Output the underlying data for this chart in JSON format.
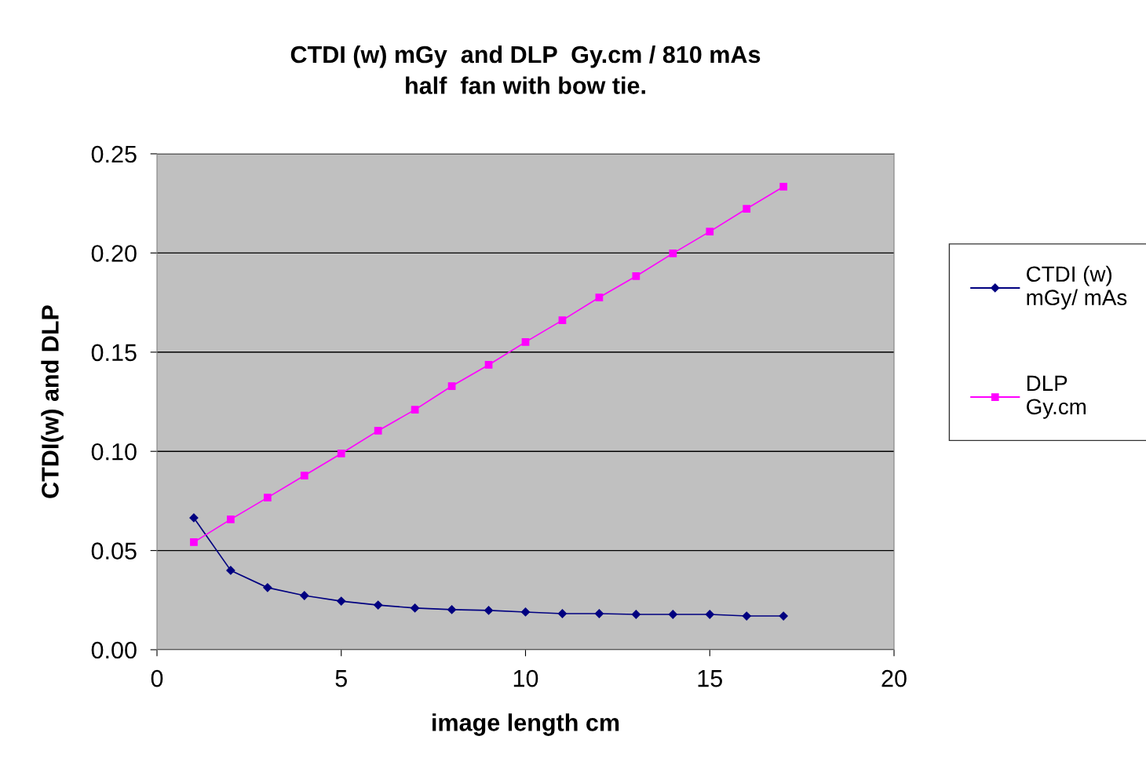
{
  "chart_data": {
    "type": "line",
    "title": "CTDI (w) mGy  and DLP  Gy.cm / 810 mAs\nhalf  fan with bow tie.",
    "xlabel": "image length cm",
    "ylabel": "CTDI(w) and DLP",
    "x": [
      1,
      2,
      3,
      4,
      5,
      6,
      7,
      8,
      9,
      10,
      11,
      12,
      13,
      14,
      15,
      16,
      17
    ],
    "series": [
      {
        "name": "CTDI (w)\nmGy/ mAs",
        "color": "#000080",
        "marker": "diamond",
        "values": [
          0.0665,
          0.04,
          0.0313,
          0.0273,
          0.0245,
          0.0225,
          0.021,
          0.0202,
          0.0198,
          0.019,
          0.0182,
          0.0182,
          0.0178,
          0.0178,
          0.0178,
          0.017,
          0.017
        ]
      },
      {
        "name": "DLP\nGy.cm",
        "color": "#ff00ff",
        "marker": "square",
        "values": [
          0.0542,
          0.0657,
          0.0767,
          0.0878,
          0.0989,
          0.1104,
          0.121,
          0.1329,
          0.1436,
          0.1551,
          0.1661,
          0.1776,
          0.1883,
          0.1998,
          0.2108,
          0.2223,
          0.2334
        ]
      }
    ],
    "xlim": [
      0,
      20
    ],
    "xticks": [
      0,
      5,
      10,
      15,
      20
    ],
    "ylim": [
      0,
      0.25
    ],
    "yticks": [
      {
        "value": 0,
        "label": "0.00"
      },
      {
        "value": 0.05,
        "label": "0.05"
      },
      {
        "value": 0.1,
        "label": "0.10"
      },
      {
        "value": 0.15,
        "label": "0.15"
      },
      {
        "value": 0.2,
        "label": "0.20"
      },
      {
        "value": 0.25,
        "label": "0.25"
      }
    ],
    "grid": "y",
    "legend": "right",
    "line_style": "solid"
  }
}
